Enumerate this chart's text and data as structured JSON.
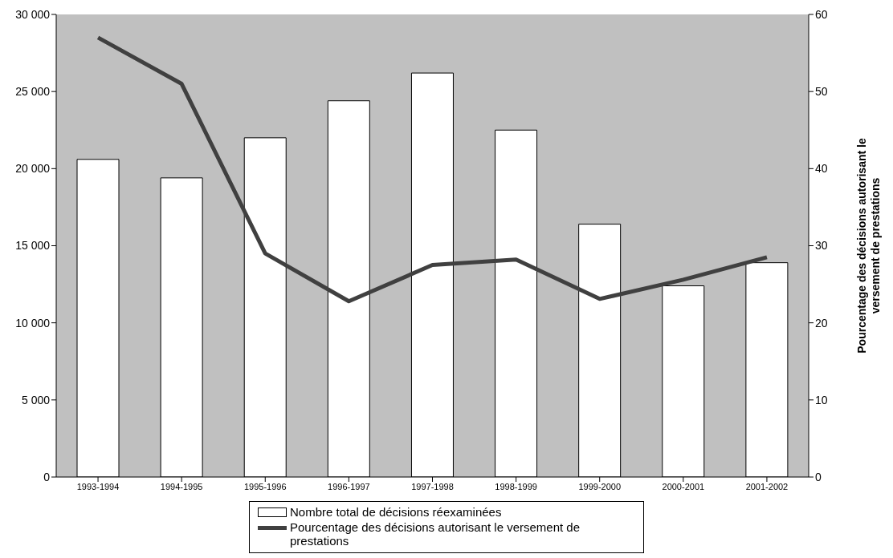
{
  "chart_data": {
    "type": "bar",
    "y2label": "Pourcentage des décisions autorisant le versement de prestations",
    "categories": [
      "1993-1994",
      "1994-1995",
      "1995-1996",
      "1996-1997",
      "1997-1998",
      "1998-1999",
      "1999-2000",
      "2000-2001",
      "2001-2002"
    ],
    "series": [
      {
        "name": "Nombre total de décisions réexaminées",
        "color": "#ffffff",
        "values": [
          20600,
          19400,
          22000,
          24400,
          26200,
          22500,
          16400,
          12400,
          13900
        ]
      },
      {
        "name": "Pourcentage des décisions autorisant le versement de prestations",
        "type": "line",
        "axis": "y2",
        "color": "#404040",
        "marker": "none",
        "values": [
          57,
          51,
          29,
          22.8,
          27.5,
          28.2,
          23.1,
          25.6,
          28.5
        ]
      }
    ],
    "ylim": [
      0,
      30000
    ],
    "yticks": [
      0,
      {
        "value": 5000,
        "label": "5 000"
      },
      {
        "value": 10000,
        "label": "10 000"
      },
      {
        "value": 15000,
        "label": "15 000"
      },
      {
        "value": 20000,
        "label": "20 000"
      },
      {
        "value": 25000,
        "label": "25 000"
      },
      {
        "value": 30000,
        "label": "30 000"
      }
    ],
    "y2lim": [
      0,
      60
    ],
    "y2ticks": [
      0,
      10,
      20,
      30,
      40,
      50,
      60
    ],
    "legend": "bottom"
  }
}
